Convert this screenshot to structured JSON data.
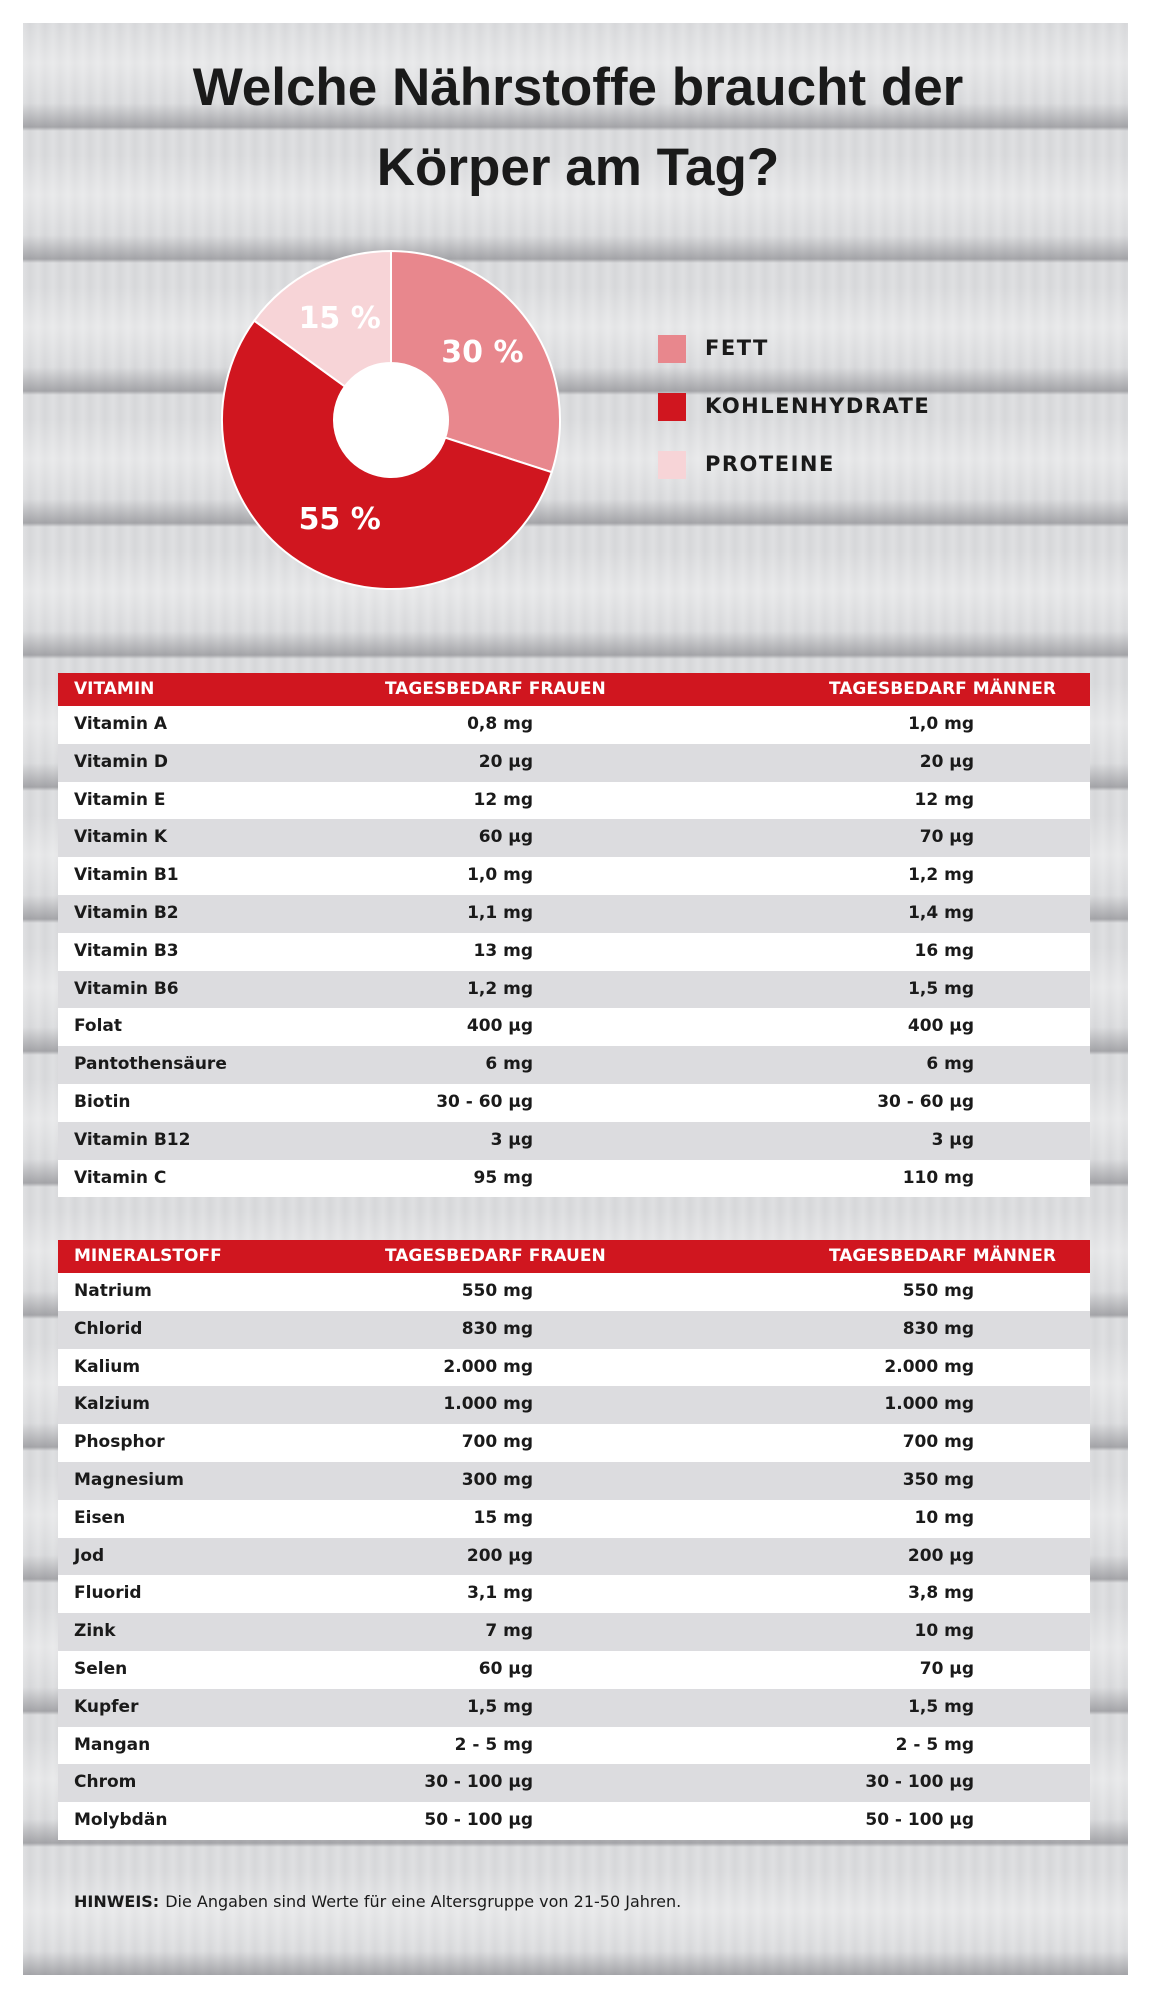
{
  "chart_data": {
    "type": "pie",
    "title": "Welche Nährstoffe braucht der Körper am Tag?",
    "categories": [
      "FETT",
      "KOHLENHYDRATE",
      "PROTEINE"
    ],
    "values": [
      30,
      55,
      15
    ],
    "value_labels": [
      "30 %",
      "55 %",
      "15 %"
    ],
    "colors": [
      "#e8878d",
      "#d0161f",
      "#f7d4d7"
    ],
    "donut": true,
    "legend": "right"
  },
  "vitamins": {
    "header": [
      "VITAMIN",
      "TAGESBEDARF FRAUEN",
      "TAGESBEDARF MÄNNER"
    ],
    "rows": [
      [
        "Vitamin A",
        "0,8 mg",
        "1,0 mg"
      ],
      [
        "Vitamin D",
        "20 µg",
        "20 µg"
      ],
      [
        "Vitamin E",
        "12 mg",
        "12 mg"
      ],
      [
        "Vitamin K",
        "60 µg",
        "70 µg"
      ],
      [
        "Vitamin B1",
        "1,0 mg",
        "1,2 mg"
      ],
      [
        "Vitamin B2",
        "1,1 mg",
        "1,4 mg"
      ],
      [
        "Vitamin B3",
        "13 mg",
        "16 mg"
      ],
      [
        "Vitamin B6",
        "1,2 mg",
        "1,5 mg"
      ],
      [
        "Folat",
        "400 µg",
        "400 µg"
      ],
      [
        "Pantothensäure",
        "6 mg",
        "6 mg"
      ],
      [
        "Biotin",
        "30 - 60 µg",
        "30 - 60 µg"
      ],
      [
        "Vitamin B12",
        "3 µg",
        "3 µg"
      ],
      [
        "Vitamin C",
        "95 mg",
        "110 mg"
      ]
    ]
  },
  "minerals": {
    "header": [
      "MINERALSTOFF",
      "TAGESBEDARF FRAUEN",
      "TAGESBEDARF MÄNNER"
    ],
    "rows": [
      [
        "Natrium",
        "550 mg",
        "550 mg"
      ],
      [
        "Chlorid",
        "830 mg",
        "830 mg"
      ],
      [
        "Kalium",
        "2.000 mg",
        "2.000 mg"
      ],
      [
        "Kalzium",
        "1.000 mg",
        "1.000 mg"
      ],
      [
        "Phosphor",
        "700 mg",
        "700 mg"
      ],
      [
        "Magnesium",
        "300 mg",
        "350 mg"
      ],
      [
        "Eisen",
        "15 mg",
        "10 mg"
      ],
      [
        "Jod",
        "200 µg",
        "200 µg"
      ],
      [
        "Fluorid",
        "3,1 mg",
        "3,8 mg"
      ],
      [
        "Zink",
        "7 mg",
        "10 mg"
      ],
      [
        "Selen",
        "60 µg",
        "70 µg"
      ],
      [
        "Kupfer",
        "1,5 mg",
        "1,5 mg"
      ],
      [
        "Mangan",
        "2 - 5 mg",
        "2 - 5 mg"
      ],
      [
        "Chrom",
        "30 - 100 µg",
        "30 - 100 µg"
      ],
      [
        "Molybdän",
        "50 - 100 µg",
        "50 - 100 µg"
      ]
    ]
  },
  "note": {
    "label": "HINWEIS:",
    "text": "Die Angaben sind Werte für eine Altersgruppe von 21-50 Jahren."
  }
}
